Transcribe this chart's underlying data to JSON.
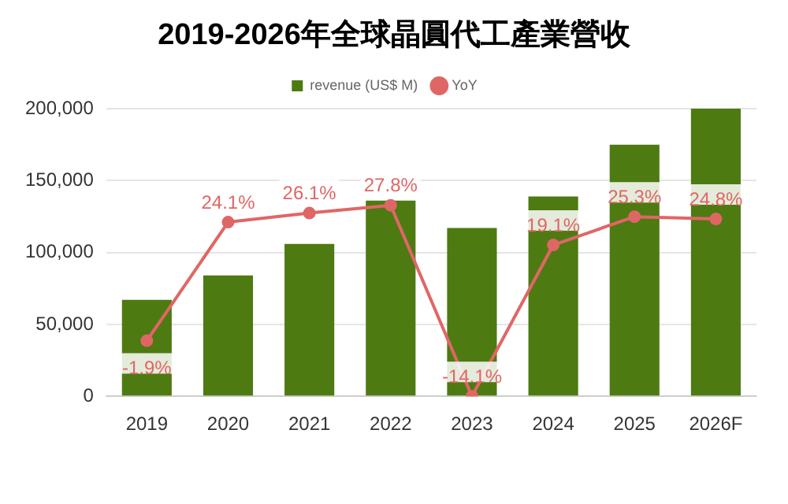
{
  "chart_data": {
    "type": "bar",
    "title": "2019-2026年全球晶圓代工產業營收",
    "categories": [
      "2019",
      "2020",
      "2021",
      "2022",
      "2023",
      "2024",
      "2025",
      "2026F"
    ],
    "series": [
      {
        "name": "revenue (US$ M)",
        "color": "#4e7a12",
        "values": [
          67000,
          84000,
          106000,
          136000,
          117000,
          139000,
          175000,
          200000
        ]
      },
      {
        "name": "YoY",
        "type": "line",
        "axis": "y2",
        "color": "#e06666",
        "values": [
          -1.9,
          24.1,
          26.1,
          27.8,
          -14.1,
          19.1,
          25.3,
          24.8
        ],
        "value_labels": [
          "-1.9%",
          "24.1%",
          "26.1%",
          "27.8%",
          "-14.1%",
          "19.1%",
          "25.3%",
          "24.8%"
        ]
      }
    ],
    "ylim": [
      0,
      200000
    ],
    "yticks": [
      0,
      {
        "value": 50000,
        "label": "50,000"
      },
      {
        "value": 100000,
        "label": "100,000"
      },
      {
        "value": 150000,
        "label": "150,000"
      },
      {
        "value": 200000,
        "label": "200,000"
      }
    ],
    "y2lim": [
      -14.1,
      49
    ],
    "grid": "y",
    "legend": "top",
    "marker": "circle"
  }
}
